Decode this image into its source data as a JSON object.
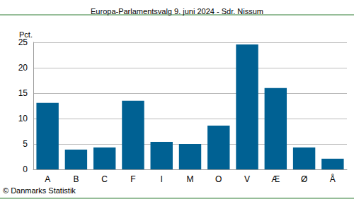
{
  "chart_data": {
    "type": "bar",
    "title": "Europa-Parlamentsvalg 9. juni 2024 - Sdr. Nissum",
    "ylabel": "Pct.",
    "categories": [
      "A",
      "B",
      "C",
      "F",
      "I",
      "M",
      "O",
      "V",
      "Æ",
      "Ø",
      "Å"
    ],
    "values": [
      13.1,
      3.9,
      4.3,
      13.5,
      5.4,
      5.0,
      8.6,
      24.6,
      16.0,
      4.3,
      2.1
    ],
    "color": "#006193",
    "ylim": [
      0,
      25
    ],
    "yticks": [
      0,
      5,
      10,
      15,
      20,
      25
    ],
    "grid": true,
    "annotations": [
      "© Danmarks Statistik"
    ]
  }
}
